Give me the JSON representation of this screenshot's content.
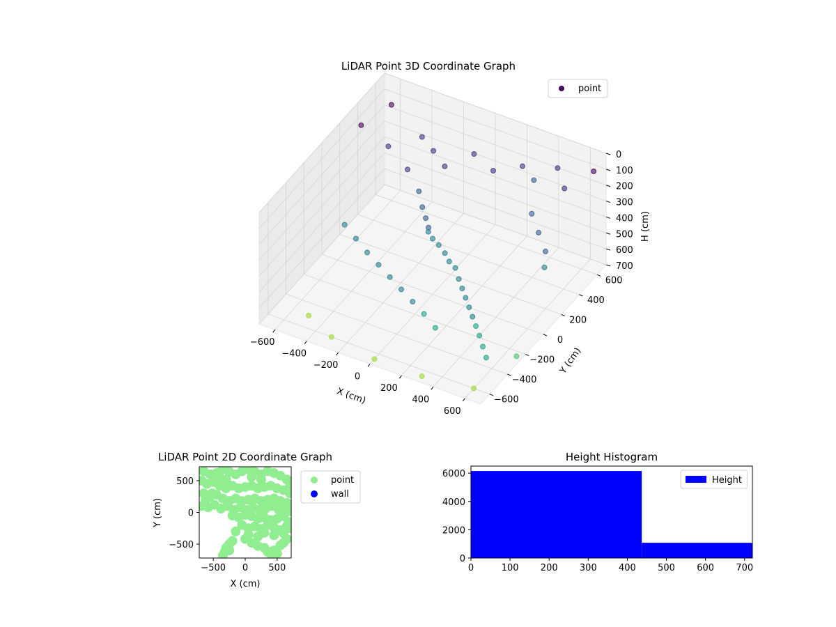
{
  "chart_data": [
    {
      "type": "scatter",
      "projection": "3d",
      "title": "LiDAR Point 3D Coordinate Graph",
      "xlabel": "X (cm)",
      "ylabel": "Y (cm)",
      "zlabel": "H (cm)",
      "xlim": [
        -700,
        700
      ],
      "ylim": [
        -700,
        700
      ],
      "zlim": [
        0,
        700
      ],
      "xticks": [
        -600,
        -400,
        -200,
        0,
        200,
        400,
        600
      ],
      "yticks": [
        -600,
        -400,
        -200,
        0,
        200,
        400,
        600
      ],
      "zticks": [
        0,
        100,
        200,
        300,
        400,
        500,
        600,
        700
      ],
      "zaxis_inverted": true,
      "colormap": "viridis",
      "grid": true,
      "legend": {
        "entries": [
          "point"
        ],
        "placement": "top-right"
      },
      "series": [
        {
          "name": "point",
          "description_points_estimated": true,
          "points": [
            [
              -650,
              350,
              90
            ],
            [
              -450,
              300,
              120
            ],
            [
              -300,
              250,
              180
            ],
            [
              -200,
              200,
              250
            ],
            [
              -150,
              150,
              300
            ],
            [
              -100,
              100,
              320
            ],
            [
              -60,
              60,
              340
            ],
            [
              -50,
              40,
              350
            ],
            [
              0,
              0,
              350
            ],
            [
              50,
              -20,
              360
            ],
            [
              100,
              -40,
              380
            ],
            [
              150,
              -80,
              390
            ],
            [
              200,
              -100,
              400
            ],
            [
              250,
              -150,
              420
            ],
            [
              300,
              -200,
              430
            ],
            [
              350,
              -250,
              440
            ],
            [
              400,
              -300,
              450
            ],
            [
              450,
              -350,
              460
            ],
            [
              500,
              -400,
              470
            ],
            [
              550,
              -450,
              480
            ],
            [
              600,
              -500,
              500
            ],
            [
              650,
              -550,
              520
            ],
            [
              -500,
              -100,
              380
            ],
            [
              -400,
              -150,
              400
            ],
            [
              -300,
              -200,
              420
            ],
            [
              -200,
              -250,
              430
            ],
            [
              -100,
              -300,
              440
            ],
            [
              0,
              -350,
              450
            ],
            [
              100,
              -400,
              460
            ],
            [
              200,
              -450,
              470
            ],
            [
              300,
              -500,
              490
            ],
            [
              -350,
              500,
              150
            ],
            [
              -250,
              450,
              170
            ],
            [
              -150,
              400,
              200
            ],
            [
              400,
              400,
              300
            ],
            [
              500,
              300,
              320
            ],
            [
              600,
              200,
              340
            ],
            [
              650,
              100,
              360
            ],
            [
              300,
              600,
              250
            ],
            [
              200,
              650,
              230
            ],
            [
              -600,
              600,
              100
            ],
            [
              -500,
              -500,
              700
            ],
            [
              -300,
              -600,
              700
            ],
            [
              0,
              -650,
              700
            ],
            [
              300,
              -650,
              700
            ],
            [
              600,
              -600,
              700
            ],
            [
              650,
              650,
              100
            ],
            [
              550,
              500,
              150
            ],
            [
              450,
              600,
              120
            ],
            [
              100,
              500,
              200
            ],
            [
              -50,
              550,
              180
            ],
            [
              700,
              -300,
              650
            ]
          ]
        }
      ]
    },
    {
      "type": "scatter",
      "title": "LiDAR Point 2D Coordinate Graph",
      "xlabel": "X (cm)",
      "ylabel": "Y (cm)",
      "xlim": [
        -720,
        720
      ],
      "ylim": [
        -720,
        720
      ],
      "xticks": [
        -500,
        0,
        500
      ],
      "yticks": [
        -500,
        0,
        500
      ],
      "legend": {
        "entries": [
          "point",
          "wall"
        ],
        "placement": "right"
      },
      "series": [
        {
          "name": "point",
          "color": "#90ee90",
          "points": [
            [
              -650,
              650
            ],
            [
              -550,
              600
            ],
            [
              -450,
              620
            ],
            [
              -350,
              680
            ],
            [
              -250,
              640
            ],
            [
              -150,
              600
            ],
            [
              -50,
              650
            ],
            [
              50,
              680
            ],
            [
              150,
              640
            ],
            [
              250,
              600
            ],
            [
              350,
              650
            ],
            [
              450,
              620
            ],
            [
              550,
              580
            ],
            [
              650,
              520
            ],
            [
              700,
              450
            ],
            [
              -680,
              500
            ],
            [
              -600,
              450
            ],
            [
              -500,
              480
            ],
            [
              -400,
              420
            ],
            [
              -300,
              380
            ],
            [
              -200,
              420
            ],
            [
              -100,
              380
            ],
            [
              0,
              400
            ],
            [
              100,
              420
            ],
            [
              200,
              380
            ],
            [
              300,
              400
            ],
            [
              400,
              420
            ],
            [
              500,
              380
            ],
            [
              600,
              350
            ],
            [
              700,
              300
            ],
            [
              -650,
              300
            ],
            [
              -550,
              250
            ],
            [
              -450,
              280
            ],
            [
              -350,
              220
            ],
            [
              -250,
              180
            ],
            [
              -150,
              220
            ],
            [
              -50,
              180
            ],
            [
              50,
              200
            ],
            [
              150,
              220
            ],
            [
              250,
              180
            ],
            [
              350,
              200
            ],
            [
              450,
              220
            ],
            [
              550,
              180
            ],
            [
              650,
              150
            ],
            [
              -680,
              100
            ],
            [
              -580,
              80
            ],
            [
              -480,
              120
            ],
            [
              -380,
              60
            ],
            [
              -280,
              100
            ],
            [
              -180,
              40
            ],
            [
              -80,
              80
            ],
            [
              20,
              40
            ],
            [
              120,
              80
            ],
            [
              220,
              40
            ],
            [
              320,
              60
            ],
            [
              420,
              100
            ],
            [
              520,
              50
            ],
            [
              620,
              80
            ],
            [
              700,
              20
            ],
            [
              -200,
              -50
            ],
            [
              -100,
              -80
            ],
            [
              0,
              -40
            ],
            [
              100,
              -60
            ],
            [
              200,
              -100
            ],
            [
              300,
              -80
            ],
            [
              400,
              -120
            ],
            [
              500,
              -100
            ],
            [
              600,
              -60
            ],
            [
              680,
              -150
            ],
            [
              -50,
              -200
            ],
            [
              50,
              -250
            ],
            [
              150,
              -220
            ],
            [
              250,
              -260
            ],
            [
              350,
              -200
            ],
            [
              450,
              -240
            ],
            [
              550,
              -280
            ],
            [
              650,
              -220
            ],
            [
              -150,
              -300
            ],
            [
              50,
              -350
            ],
            [
              200,
              -380
            ],
            [
              300,
              -320
            ],
            [
              450,
              -360
            ],
            [
              600,
              -330
            ],
            [
              700,
              -250
            ],
            [
              -200,
              -450
            ],
            [
              -250,
              -500
            ],
            [
              -300,
              -560
            ],
            [
              -320,
              -620
            ],
            [
              -350,
              -680
            ],
            [
              -250,
              -600
            ],
            [
              0,
              -420
            ],
            [
              100,
              -480
            ],
            [
              200,
              -530
            ],
            [
              300,
              -560
            ],
            [
              350,
              -620
            ],
            [
              400,
              -660
            ],
            [
              450,
              -600
            ],
            [
              550,
              -520
            ],
            [
              600,
              -480
            ],
            [
              650,
              -420
            ],
            [
              500,
              -650
            ],
            [
              -300,
              520
            ],
            [
              -400,
              560
            ],
            [
              -520,
              300
            ],
            [
              -620,
              200
            ],
            [
              250,
              520
            ],
            [
              100,
              560
            ]
          ]
        },
        {
          "name": "wall",
          "color": "#0000ff",
          "points": []
        }
      ]
    },
    {
      "type": "bar",
      "subtype": "histogram",
      "title": "Height Histogram",
      "xlabel": "",
      "ylabel": "",
      "xlim": [
        0,
        720
      ],
      "ylim": [
        0,
        6500
      ],
      "xticks": [
        0,
        100,
        200,
        300,
        400,
        500,
        600,
        700
      ],
      "yticks": [
        0,
        2000,
        4000,
        6000
      ],
      "legend": {
        "entries": [
          "Height"
        ],
        "placement": "top-right"
      },
      "series": [
        {
          "name": "Height",
          "color": "#0000ff",
          "bins": [
            {
              "start": 0,
              "end": 437,
              "count": 6150
            },
            {
              "start": 437,
              "end": 720,
              "count": 1080
            }
          ]
        }
      ]
    }
  ]
}
